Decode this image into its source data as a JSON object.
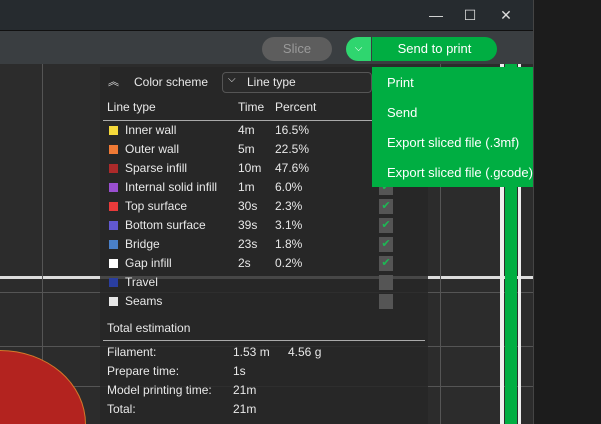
{
  "window": {
    "minimize": "—",
    "maximize": "☐",
    "close": "✕"
  },
  "toolbar": {
    "slice": "Slice",
    "send_to_print": "Send to print",
    "dropdown_icon": "chevron-down"
  },
  "send_menu": [
    "Print",
    "Send",
    "Export sliced file (.3mf)",
    "Export sliced file (.gcode)"
  ],
  "legend": {
    "color_scheme_label": "Color scheme",
    "color_scheme_value": "Line type",
    "headers": {
      "type": "Line type",
      "time": "Time",
      "percent": "Percent"
    },
    "rows": [
      {
        "name": "Inner wall",
        "time": "4m",
        "percent": "16.5%",
        "color": "#f5d93a",
        "checked": true
      },
      {
        "name": "Outer wall",
        "time": "5m",
        "percent": "22.5%",
        "color": "#f07a35",
        "checked": true
      },
      {
        "name": "Sparse infill",
        "time": "10m",
        "percent": "47.6%",
        "color": "#ad2a2a",
        "checked": true
      },
      {
        "name": "Internal solid infill",
        "time": "1m",
        "percent": "6.0%",
        "color": "#9a4fd0",
        "checked": true
      },
      {
        "name": "Top surface",
        "time": "30s",
        "percent": "2.3%",
        "color": "#e83a3a",
        "checked": true
      },
      {
        "name": "Bottom surface",
        "time": "39s",
        "percent": "3.1%",
        "color": "#6158d0",
        "checked": true
      },
      {
        "name": "Bridge",
        "time": "23s",
        "percent": "1.8%",
        "color": "#4a80c8",
        "checked": true
      },
      {
        "name": "Gap infill",
        "time": "2s",
        "percent": "0.2%",
        "color": "#ffffff",
        "checked": true
      },
      {
        "name": "Travel",
        "time": "",
        "percent": "",
        "color": "#2a3ea0",
        "checked": false
      },
      {
        "name": "Seams",
        "time": "",
        "percent": "",
        "color": "#e6e6e6",
        "checked": false
      }
    ],
    "total": {
      "title": "Total estimation",
      "filament_label": "Filament:",
      "filament_length": "1.53 m",
      "filament_weight": "4.56 g",
      "prepare_label": "Prepare time:",
      "prepare": "1s",
      "model_label": "Model printing time:",
      "model": "21m",
      "total_label": "Total:",
      "total": "21m"
    }
  }
}
